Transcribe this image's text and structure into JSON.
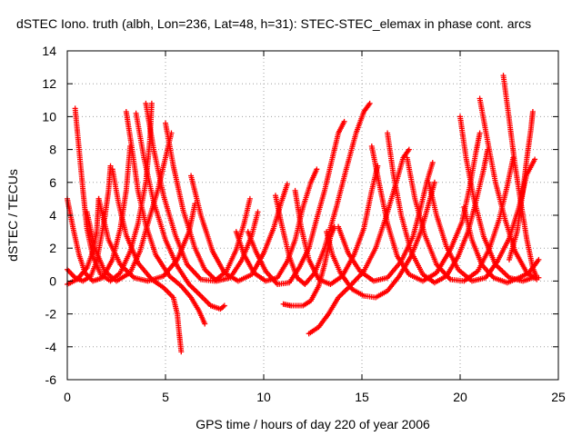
{
  "chart_data": {
    "type": "scatter",
    "title": "dSTEC Iono. truth (albh, Lon=236, Lat=48, h=31): STEC-STEC_elemax in phase cont. arcs",
    "xlabel": "GPS time / hours of day 220 of year 2006",
    "ylabel": "dSTEC  / TECUs",
    "xlim": [
      0,
      25
    ],
    "ylim": [
      -6,
      14
    ],
    "xticks": [
      0,
      5,
      10,
      15,
      20,
      25
    ],
    "yticks": [
      -6,
      -4,
      -2,
      0,
      2,
      4,
      6,
      8,
      10,
      12,
      14
    ],
    "grid": true,
    "legend": "none",
    "marker": "plus",
    "color": "#ff0000",
    "series": [
      {
        "points": [
          [
            0.0,
            5.0
          ],
          [
            0.3,
            3.2
          ],
          [
            0.6,
            1.6
          ],
          [
            0.9,
            0.5
          ],
          [
            1.3,
            0.0
          ],
          [
            1.8,
            0.2
          ],
          [
            2.3,
            1.3
          ],
          [
            2.7,
            3.2
          ],
          [
            3.0,
            5.5
          ],
          [
            3.2,
            8.2
          ]
        ]
      },
      {
        "points": [
          [
            0.0,
            0.7
          ],
          [
            0.4,
            0.2
          ],
          [
            0.8,
            0.0
          ],
          [
            1.2,
            0.3
          ],
          [
            1.5,
            1.2
          ],
          [
            1.7,
            2.5
          ],
          [
            1.9,
            3.8
          ],
          [
            2.1,
            5.5
          ],
          [
            2.2,
            7.0
          ]
        ]
      },
      {
        "points": [
          [
            0.0,
            -0.2
          ],
          [
            0.5,
            0.1
          ],
          [
            1.0,
            0.8
          ],
          [
            1.3,
            1.8
          ],
          [
            1.5,
            3.0
          ],
          [
            1.6,
            5.0
          ]
        ]
      },
      {
        "points": [
          [
            0.4,
            10.5
          ],
          [
            0.6,
            8.0
          ],
          [
            0.8,
            5.5
          ],
          [
            1.0,
            3.2
          ],
          [
            1.3,
            1.5
          ],
          [
            1.7,
            0.4
          ],
          [
            2.2,
            0.0
          ],
          [
            2.7,
            0.5
          ],
          [
            3.2,
            1.8
          ],
          [
            3.6,
            3.5
          ],
          [
            4.0,
            6.0
          ],
          [
            4.2,
            8.5
          ],
          [
            4.3,
            10.8
          ]
        ]
      },
      {
        "points": [
          [
            1.0,
            4.2
          ],
          [
            1.4,
            2.0
          ],
          [
            1.9,
            0.6
          ],
          [
            2.5,
            0.0
          ],
          [
            3.2,
            0.5
          ],
          [
            3.7,
            1.8
          ],
          [
            4.1,
            3.5
          ],
          [
            4.6,
            5.5
          ],
          [
            5.0,
            7.5
          ],
          [
            5.3,
            9.0
          ]
        ]
      },
      {
        "points": [
          [
            1.6,
            5.0
          ],
          [
            2.1,
            2.5
          ],
          [
            2.7,
            1.0
          ],
          [
            3.4,
            0.2
          ],
          [
            4.1,
            0.0
          ],
          [
            4.9,
            0.3
          ],
          [
            5.6,
            1.3
          ],
          [
            6.2,
            3.0
          ],
          [
            6.5,
            4.7
          ]
        ]
      },
      {
        "points": [
          [
            2.3,
            6.8
          ],
          [
            2.6,
            4.8
          ],
          [
            3.0,
            2.8
          ],
          [
            3.6,
            1.1
          ],
          [
            4.3,
            0.1
          ],
          [
            4.9,
            -0.4
          ],
          [
            5.4,
            -1.0
          ],
          [
            5.6,
            -2.0
          ],
          [
            5.7,
            -3.2
          ],
          [
            5.8,
            -4.3
          ]
        ]
      },
      {
        "points": [
          [
            3.0,
            10.3
          ],
          [
            3.3,
            8.0
          ],
          [
            3.6,
            5.5
          ],
          [
            4.0,
            3.4
          ],
          [
            4.5,
            1.6
          ],
          [
            5.2,
            0.3
          ],
          [
            5.8,
            -0.3
          ],
          [
            6.3,
            -1.0
          ],
          [
            6.7,
            -1.8
          ],
          [
            7.0,
            -2.6
          ]
        ]
      },
      {
        "points": [
          [
            3.5,
            10.2
          ],
          [
            3.9,
            7.5
          ],
          [
            4.4,
            4.8
          ],
          [
            5.0,
            2.5
          ],
          [
            5.6,
            0.9
          ],
          [
            6.2,
            -0.2
          ],
          [
            6.8,
            -0.9
          ],
          [
            7.3,
            -1.5
          ],
          [
            7.8,
            -1.7
          ],
          [
            8.0,
            -1.5
          ]
        ]
      },
      {
        "points": [
          [
            4.0,
            10.8
          ],
          [
            4.4,
            8.0
          ],
          [
            4.9,
            5.2
          ],
          [
            5.5,
            2.8
          ],
          [
            6.1,
            1.0
          ],
          [
            6.8,
            0.1
          ],
          [
            7.5,
            0.0
          ],
          [
            8.1,
            0.6
          ],
          [
            8.6,
            1.9
          ],
          [
            9.0,
            3.5
          ],
          [
            9.3,
            5.0
          ]
        ]
      },
      {
        "points": [
          [
            5.0,
            9.6
          ],
          [
            5.4,
            7.0
          ],
          [
            5.9,
            4.3
          ],
          [
            6.5,
            2.0
          ],
          [
            7.0,
            0.7
          ],
          [
            7.6,
            0.0
          ],
          [
            8.3,
            0.2
          ],
          [
            8.9,
            1.3
          ],
          [
            9.4,
            2.8
          ],
          [
            9.7,
            4.2
          ]
        ]
      },
      {
        "points": [
          [
            6.3,
            6.4
          ],
          [
            6.8,
            4.0
          ],
          [
            7.4,
            1.8
          ],
          [
            8.0,
            0.5
          ],
          [
            8.7,
            0.0
          ],
          [
            9.4,
            0.4
          ],
          [
            10.0,
            1.7
          ],
          [
            10.5,
            3.2
          ],
          [
            10.9,
            4.8
          ],
          [
            11.2,
            5.9
          ]
        ]
      },
      {
        "points": [
          [
            8.6,
            3.0
          ],
          [
            9.0,
            1.6
          ],
          [
            9.5,
            0.5
          ],
          [
            10.1,
            0.0
          ],
          [
            10.7,
            0.2
          ],
          [
            11.2,
            1.2
          ],
          [
            11.6,
            2.5
          ],
          [
            12.0,
            4.5
          ],
          [
            12.4,
            6.0
          ],
          [
            12.7,
            6.8
          ]
        ]
      },
      {
        "points": [
          [
            9.2,
            3.0
          ],
          [
            9.6,
            1.8
          ],
          [
            10.1,
            0.6
          ],
          [
            10.7,
            -0.2
          ],
          [
            11.3,
            -0.1
          ],
          [
            11.8,
            0.8
          ],
          [
            12.3,
            2.0
          ],
          [
            12.7,
            3.8
          ],
          [
            13.1,
            5.5
          ],
          [
            13.5,
            7.5
          ],
          [
            13.8,
            9.0
          ],
          [
            14.1,
            9.7
          ]
        ]
      },
      {
        "points": [
          [
            10.6,
            5.2
          ],
          [
            10.9,
            3.5
          ],
          [
            11.3,
            1.5
          ],
          [
            11.7,
            0.2
          ],
          [
            12.1,
            -0.2
          ],
          [
            12.6,
            0.5
          ],
          [
            13.1,
            2.0
          ],
          [
            13.7,
            4.5
          ],
          [
            14.2,
            6.8
          ],
          [
            14.7,
            9.0
          ],
          [
            15.1,
            10.3
          ],
          [
            15.4,
            10.8
          ]
        ]
      },
      {
        "points": [
          [
            11.0,
            -1.4
          ],
          [
            11.4,
            -1.5
          ],
          [
            12.0,
            -1.5
          ],
          [
            12.4,
            -1.2
          ],
          [
            12.8,
            -0.3
          ],
          [
            13.1,
            1.0
          ],
          [
            13.4,
            2.7
          ],
          [
            13.6,
            3.3
          ]
        ]
      },
      {
        "points": [
          [
            11.6,
            5.5
          ],
          [
            11.9,
            3.3
          ],
          [
            12.3,
            1.3
          ],
          [
            12.8,
            0.1
          ],
          [
            13.4,
            -0.2
          ],
          [
            14.0,
            0.3
          ],
          [
            14.6,
            1.6
          ],
          [
            15.1,
            3.2
          ],
          [
            15.5,
            5.5
          ],
          [
            15.8,
            7.0
          ]
        ]
      },
      {
        "points": [
          [
            12.3,
            -3.2
          ],
          [
            12.8,
            -2.8
          ],
          [
            13.3,
            -2.0
          ],
          [
            13.8,
            -1.0
          ],
          [
            14.4,
            -0.3
          ],
          [
            15.1,
            0.6
          ],
          [
            15.7,
            2.0
          ],
          [
            16.2,
            3.8
          ],
          [
            16.7,
            5.8
          ],
          [
            17.1,
            7.5
          ],
          [
            17.4,
            8.0
          ]
        ]
      },
      {
        "points": [
          [
            13.2,
            3.0
          ],
          [
            13.5,
            1.6
          ],
          [
            13.9,
            0.5
          ],
          [
            14.5,
            -0.5
          ],
          [
            15.1,
            -0.9
          ],
          [
            15.7,
            -1.0
          ],
          [
            16.3,
            -0.6
          ],
          [
            16.9,
            0.3
          ],
          [
            17.5,
            1.5
          ],
          [
            18.0,
            3.0
          ],
          [
            18.4,
            4.7
          ],
          [
            18.7,
            6.0
          ]
        ]
      },
      {
        "points": [
          [
            13.8,
            3.3
          ],
          [
            14.3,
            1.7
          ],
          [
            14.9,
            0.6
          ],
          [
            15.6,
            0.0
          ],
          [
            16.3,
            0.2
          ],
          [
            17.0,
            1.2
          ],
          [
            17.6,
            2.7
          ],
          [
            18.0,
            4.5
          ],
          [
            18.3,
            6.0
          ],
          [
            18.6,
            7.2
          ]
        ]
      },
      {
        "points": [
          [
            15.5,
            8.2
          ],
          [
            15.9,
            5.8
          ],
          [
            16.3,
            3.5
          ],
          [
            16.8,
            1.5
          ],
          [
            17.4,
            0.4
          ],
          [
            18.1,
            0.0
          ],
          [
            18.8,
            0.5
          ],
          [
            19.5,
            1.9
          ],
          [
            20.1,
            3.6
          ],
          [
            20.5,
            5.8
          ],
          [
            20.8,
            7.8
          ],
          [
            21.0,
            9.0
          ]
        ]
      },
      {
        "points": [
          [
            16.3,
            9.0
          ],
          [
            16.6,
            6.5
          ],
          [
            17.0,
            4.0
          ],
          [
            17.5,
            1.8
          ],
          [
            18.1,
            0.4
          ],
          [
            18.7,
            -0.1
          ],
          [
            19.3,
            0.3
          ],
          [
            19.9,
            1.5
          ],
          [
            20.4,
            3.0
          ],
          [
            20.8,
            4.8
          ],
          [
            21.2,
            6.8
          ],
          [
            21.4,
            8.0
          ]
        ]
      },
      {
        "points": [
          [
            17.3,
            7.5
          ],
          [
            17.7,
            5.0
          ],
          [
            18.2,
            2.8
          ],
          [
            18.8,
            1.0
          ],
          [
            19.5,
            0.1
          ],
          [
            20.2,
            0.0
          ],
          [
            20.9,
            0.6
          ],
          [
            21.5,
            2.0
          ],
          [
            22.0,
            3.8
          ],
          [
            22.4,
            5.8
          ],
          [
            22.7,
            7.5
          ]
        ]
      },
      {
        "points": [
          [
            18.4,
            6.0
          ],
          [
            18.8,
            4.0
          ],
          [
            19.3,
            2.1
          ],
          [
            19.9,
            0.7
          ],
          [
            20.6,
            0.0
          ],
          [
            21.3,
            0.2
          ],
          [
            21.9,
            1.2
          ],
          [
            22.5,
            2.6
          ],
          [
            23.0,
            4.5
          ],
          [
            23.4,
            6.5
          ],
          [
            23.8,
            7.4
          ]
        ]
      },
      {
        "points": [
          [
            20.0,
            10.0
          ],
          [
            20.3,
            7.5
          ],
          [
            20.7,
            5.0
          ],
          [
            21.2,
            2.7
          ],
          [
            21.8,
            1.0
          ],
          [
            22.5,
            0.2
          ],
          [
            23.2,
            0.0
          ],
          [
            23.7,
            0.2
          ],
          [
            24.0,
            0.2
          ]
        ]
      },
      {
        "points": [
          [
            20.2,
            4.5
          ],
          [
            20.6,
            2.5
          ],
          [
            21.1,
            1.0
          ],
          [
            21.7,
            0.2
          ],
          [
            22.4,
            -0.1
          ],
          [
            23.0,
            0.2
          ],
          [
            23.5,
            0.5
          ],
          [
            24.0,
            1.3
          ]
        ]
      },
      {
        "points": [
          [
            21.0,
            11.1
          ],
          [
            21.4,
            8.5
          ],
          [
            21.8,
            6.0
          ],
          [
            22.3,
            3.7
          ],
          [
            22.8,
            1.8
          ],
          [
            23.4,
            0.5
          ],
          [
            23.9,
            0.1
          ]
        ]
      },
      {
        "points": [
          [
            22.2,
            12.5
          ],
          [
            22.5,
            9.8
          ],
          [
            22.8,
            7.0
          ],
          [
            23.1,
            4.7
          ],
          [
            23.4,
            2.5
          ],
          [
            23.7,
            0.8
          ],
          [
            23.9,
            0.2
          ]
        ]
      },
      {
        "points": [
          [
            22.5,
            1.3
          ],
          [
            22.9,
            3.0
          ],
          [
            23.2,
            5.5
          ],
          [
            23.4,
            7.5
          ],
          [
            23.6,
            9.2
          ],
          [
            23.7,
            10.3
          ]
        ]
      }
    ]
  }
}
